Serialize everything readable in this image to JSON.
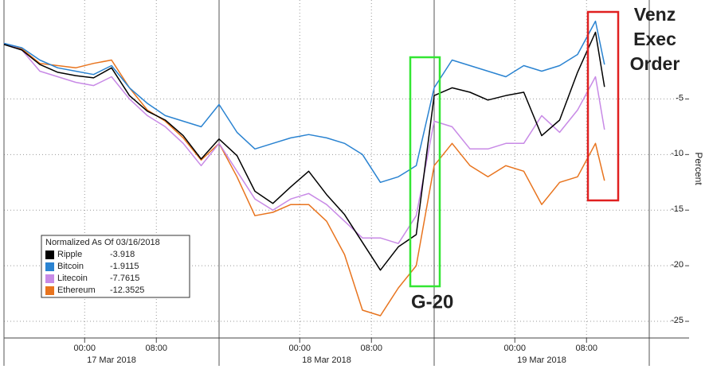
{
  "chart_data": {
    "type": "line",
    "ylabel": "Percent",
    "legend_title": "Normalized As Of 03/16/2018",
    "legend": "lower-left",
    "grid": true,
    "x": [
      "2018-03-16 15:00",
      "2018-03-16 17:00",
      "2018-03-16 19:00",
      "2018-03-16 21:00",
      "2018-03-16 23:00",
      "2018-03-17 01:00",
      "2018-03-17 03:00",
      "2018-03-17 05:00",
      "2018-03-17 07:00",
      "2018-03-17 09:00",
      "2018-03-17 11:00",
      "2018-03-17 13:00",
      "2018-03-17 15:00",
      "2018-03-17 17:00",
      "2018-03-17 19:00",
      "2018-03-17 21:00",
      "2018-03-17 23:00",
      "2018-03-18 01:00",
      "2018-03-18 03:00",
      "2018-03-18 05:00",
      "2018-03-18 07:00",
      "2018-03-18 09:00",
      "2018-03-18 11:00",
      "2018-03-18 13:00",
      "2018-03-18 15:00",
      "2018-03-18 17:00",
      "2018-03-18 19:00",
      "2018-03-18 21:00",
      "2018-03-18 23:00",
      "2018-03-19 01:00",
      "2018-03-19 03:00",
      "2018-03-19 05:00",
      "2018-03-19 07:00",
      "2018-03-19 09:00",
      "2018-03-19 10:00"
    ],
    "xlim": [
      "2018-03-16 15:00",
      "2018-03-19 19:00"
    ],
    "xticks": [
      {
        "value": "2018-03-17 00:00",
        "label": "00:00"
      },
      {
        "value": "2018-03-17 08:00",
        "label": "08:00"
      },
      {
        "value": "2018-03-18 00:00",
        "label": "00:00"
      },
      {
        "value": "2018-03-18 08:00",
        "label": "08:00"
      },
      {
        "value": "2018-03-19 00:00",
        "label": "00:00"
      },
      {
        "value": "2018-03-19 08:00",
        "label": "08:00"
      }
    ],
    "x_days": [
      {
        "label": "17 Mar 2018",
        "start": "2018-03-16 15:00",
        "end": "2018-03-17 15:00"
      },
      {
        "label": "18 Mar 2018",
        "start": "2018-03-17 15:00",
        "end": "2018-03-18 15:00"
      },
      {
        "label": "19 Mar 2018",
        "start": "2018-03-18 15:00",
        "end": "2018-03-19 15:00"
      }
    ],
    "ylim": [
      -26.5,
      3.9
    ],
    "yticks": [
      -25,
      -20,
      -15,
      -10,
      -5
    ],
    "series": [
      {
        "name": "Ripple",
        "color": "#000000",
        "values": [
          -0.1,
          -0.6,
          -1.9,
          -2.6,
          -2.9,
          -3.1,
          -2.2,
          -4.7,
          -6.1,
          -6.9,
          -8.3,
          -10.4,
          -8.6,
          -10.1,
          -13.3,
          -14.4,
          -12.9,
          -11.5,
          -13.6,
          -15.4,
          -17.9,
          -20.4,
          -18.3,
          -17.2,
          -4.7,
          -4.0,
          -4.4,
          -5.1,
          -4.7,
          -4.4,
          -8.3,
          -6.9,
          -2.6,
          1.0,
          -3.918
        ]
      },
      {
        "name": "Bitcoin",
        "color": "#2a83d1",
        "values": [
          0,
          -0.4,
          -1.5,
          -2.2,
          -2.5,
          -2.8,
          -2.0,
          -4.0,
          -5.4,
          -6.5,
          -7.0,
          -7.5,
          -5.5,
          -8.0,
          -9.5,
          -9.0,
          -8.5,
          -8.2,
          -8.5,
          -9.0,
          -10.0,
          -12.5,
          -12.0,
          -11.0,
          -4.0,
          -1.5,
          -2.0,
          -2.5,
          -3.0,
          -2.0,
          -2.5,
          -2.0,
          -1.0,
          2.0,
          -1.9115
        ]
      },
      {
        "name": "Litecoin",
        "color": "#c88ae6",
        "values": [
          0,
          -0.6,
          -2.5,
          -3.0,
          -3.5,
          -3.8,
          -3.0,
          -5.0,
          -6.5,
          -7.5,
          -9.0,
          -11.0,
          -9.0,
          -11.5,
          -14.0,
          -15.0,
          -14.0,
          -13.5,
          -14.5,
          -16.0,
          -17.5,
          -17.5,
          -18.0,
          -15.5,
          -7.0,
          -7.5,
          -9.5,
          -9.5,
          -9.0,
          -9.0,
          -6.5,
          -8.0,
          -6.0,
          -3.0,
          -7.7615
        ]
      },
      {
        "name": "Ethereum",
        "color": "#e8741e",
        "values": [
          0,
          -0.5,
          -1.8,
          -2.0,
          -2.2,
          -1.8,
          -1.5,
          -4.0,
          -6.0,
          -7.0,
          -8.5,
          -10.5,
          -9.0,
          -12.0,
          -15.5,
          -15.2,
          -14.5,
          -14.5,
          -16.0,
          -19.0,
          -24.0,
          -24.5,
          -22.0,
          -20.0,
          -11.0,
          -9.0,
          -11.0,
          -12.0,
          -11.0,
          -11.5,
          -14.5,
          -12.5,
          -12.0,
          -9.0,
          -12.3525
        ]
      }
    ],
    "annotations": [
      {
        "text": "G-20",
        "color": "#33e633"
      },
      {
        "text": "Venz Exec Order",
        "color": "#e02020"
      }
    ]
  }
}
